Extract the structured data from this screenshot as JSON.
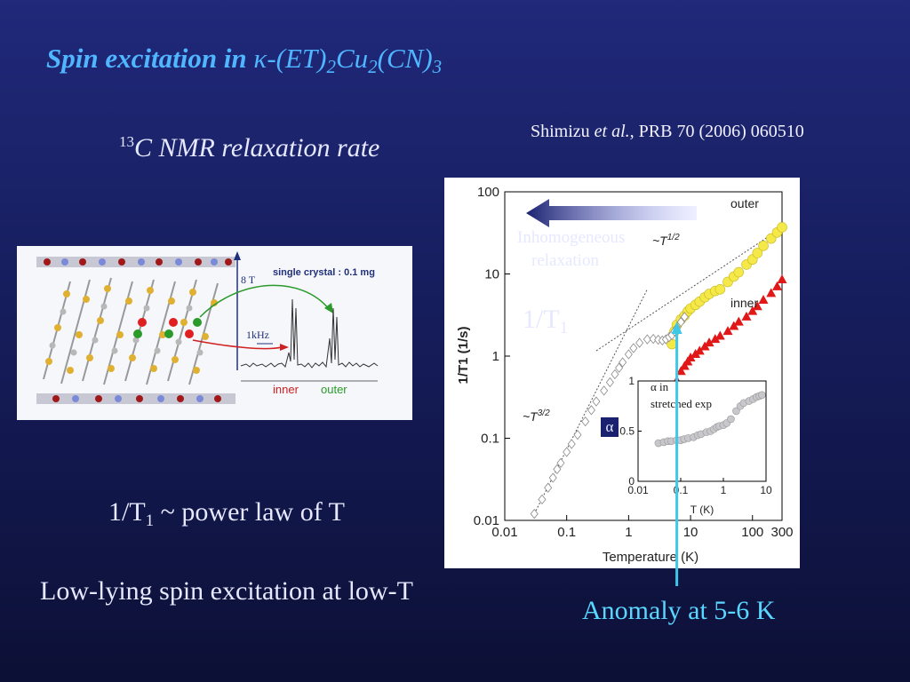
{
  "slide": {
    "title": {
      "prefix": "Spin excitation in",
      "kappa": "κ",
      "formula_main": "-(ET)",
      "sub1": "2",
      "formula_cu": "Cu",
      "sub2": "2",
      "formula_cn": "(CN)",
      "sub3": "3"
    },
    "nmr_label": {
      "isotope": "13",
      "text": "C NMR relaxation rate"
    },
    "citation": {
      "author": "Shimizu",
      "etal": "et al.",
      "ref": ", PRB 70 (2006) 060510"
    },
    "power_law": {
      "prefix": "1/T",
      "sub": "1",
      "suffix": " ~ power law of T"
    },
    "low_lying": "Low-lying spin excitation at low-T",
    "anomaly": "Anomaly at 5-6 K",
    "inhomogeneous": {
      "line1": "Inhomogeneous",
      "line2": "relaxation"
    },
    "rate_label": {
      "prefix": "1/T",
      "sub": "1"
    },
    "alpha_label": {
      "line1": "α in",
      "line2": "stretched exp"
    },
    "alpha_axis": "α"
  },
  "crystal_panel": {
    "field": "8 T",
    "sample": "single crystal : 0.1 mg",
    "scale": "1kHz",
    "inner": "inner",
    "outer": "outer",
    "colors": {
      "inner": "#e02020",
      "outer": "#2a9a2a"
    }
  },
  "chart_data": [
    {
      "type": "scatter",
      "title": "",
      "xlabel": "Temperature (K)",
      "ylabel": "1/T1 (1/s)",
      "xscale": "log",
      "yscale": "log",
      "xlim": [
        0.01,
        300
      ],
      "ylim": [
        0.01,
        100
      ],
      "xticks": [
        "0.01",
        "0.1",
        "1",
        "10",
        "100",
        "300"
      ],
      "yticks": [
        "100",
        "10",
        "1",
        "0.1",
        "0.01"
      ],
      "annotations": {
        "outer": "outer",
        "inner": "inner",
        "t_half": "~T",
        "t_half_exp": "1/2",
        "t_32": "~T",
        "t_32_exp": "3/2"
      },
      "colors": {
        "outer": "#f5e94a",
        "inner": "#e01818",
        "low": "#ffffff",
        "arrow": "#3ec8e8"
      },
      "series": [
        {
          "name": "outer",
          "marker": "circle",
          "x": [
            5,
            5.5,
            6,
            7,
            8,
            9,
            10,
            12,
            14,
            17,
            20,
            25,
            30,
            40,
            50,
            60,
            80,
            100,
            120,
            150,
            200,
            250,
            300
          ],
          "y": [
            1.4,
            2.0,
            2.4,
            2.8,
            3.1,
            3.5,
            3.8,
            4.2,
            4.6,
            5.2,
            5.7,
            6.2,
            6.5,
            8.0,
            9.3,
            10.5,
            13,
            15,
            18,
            22,
            27,
            32,
            37
          ]
        },
        {
          "name": "inner",
          "marker": "triangle",
          "x": [
            5,
            6,
            7,
            8,
            9,
            10,
            12,
            14,
            17,
            20,
            25,
            30,
            40,
            50,
            60,
            80,
            100,
            120,
            150,
            200,
            250,
            300
          ],
          "y": [
            0.32,
            0.5,
            0.65,
            0.75,
            0.85,
            0.95,
            1.05,
            1.15,
            1.3,
            1.45,
            1.6,
            1.75,
            2.0,
            2.3,
            2.6,
            3.0,
            3.5,
            4.0,
            4.8,
            5.8,
            7.0,
            8.5
          ]
        },
        {
          "name": "low-T",
          "marker": "diamond",
          "x": [
            0.03,
            0.04,
            0.05,
            0.06,
            0.07,
            0.08,
            0.1,
            0.12,
            0.15,
            0.2,
            0.25,
            0.3,
            0.4,
            0.5,
            0.6,
            0.7,
            0.8,
            1.0,
            1.2,
            1.5,
            2,
            2.5,
            3,
            3.5,
            4,
            4.5,
            5,
            5.5,
            6,
            7,
            8
          ],
          "y": [
            0.012,
            0.018,
            0.025,
            0.033,
            0.042,
            0.05,
            0.068,
            0.085,
            0.11,
            0.16,
            0.22,
            0.28,
            0.38,
            0.48,
            0.6,
            0.72,
            0.84,
            1.05,
            1.25,
            1.45,
            1.6,
            1.62,
            1.58,
            1.55,
            1.6,
            1.7,
            1.8,
            2.0,
            2.2,
            2.6,
            3.0
          ]
        }
      ],
      "guides": [
        {
          "name": "~T^1/2",
          "x": [
            0.3,
            300
          ],
          "y": [
            1.16,
            36.7
          ]
        },
        {
          "name": "~T^3/2",
          "x": [
            0.03,
            2
          ],
          "y": [
            0.012,
            6.5
          ]
        }
      ],
      "anomaly_T": 6
    },
    {
      "type": "scatter",
      "title": "",
      "xlabel": "T (K)",
      "ylabel": "α",
      "xscale": "log",
      "xlim": [
        0.01,
        10
      ],
      "ylim": [
        0,
        1
      ],
      "xticks": [
        "0.01",
        "0.1",
        "1",
        "10"
      ],
      "yticks": [
        "0",
        "0.5",
        "1"
      ],
      "series": [
        {
          "name": "alpha",
          "x": [
            0.03,
            0.04,
            0.05,
            0.06,
            0.08,
            0.1,
            0.12,
            0.15,
            0.2,
            0.25,
            0.3,
            0.4,
            0.5,
            0.6,
            0.7,
            0.8,
            1.0,
            1.2,
            1.5,
            2,
            2.5,
            3,
            4,
            5,
            6,
            7,
            8
          ],
          "y": [
            0.38,
            0.39,
            0.4,
            0.4,
            0.41,
            0.41,
            0.42,
            0.43,
            0.44,
            0.46,
            0.47,
            0.49,
            0.5,
            0.52,
            0.54,
            0.55,
            0.56,
            0.58,
            0.62,
            0.7,
            0.75,
            0.78,
            0.8,
            0.82,
            0.84,
            0.85,
            0.86
          ]
        }
      ]
    }
  ]
}
